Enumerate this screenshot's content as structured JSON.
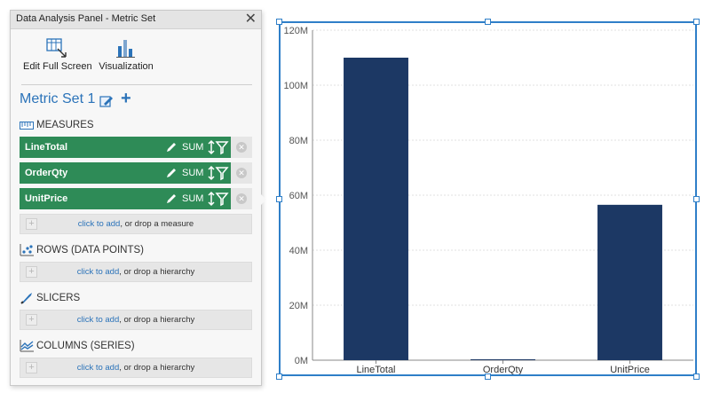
{
  "panel": {
    "title": "Data Analysis Panel - Metric Set",
    "close_glyph": "✕",
    "toolbar": {
      "edit_full_screen": "Edit Full Screen",
      "visualization": "Visualization"
    },
    "metric_set_name": "Metric Set 1",
    "add_glyph": "+",
    "sections": {
      "measures": "MEASURES",
      "rows": "ROWS (DATA POINTS)",
      "slicers": "SLICERS",
      "columns": "COLUMNS (SERIES)"
    },
    "measures": [
      {
        "name": "LineTotal",
        "aggregation": "SUM"
      },
      {
        "name": "OrderQty",
        "aggregation": "SUM"
      },
      {
        "name": "UnitPrice",
        "aggregation": "SUM"
      }
    ],
    "remove_glyph": "✕",
    "dropzones": {
      "link": "click to add",
      "measure_text": ", or drop a measure",
      "hierarchy_text": ", or drop a hierarchy"
    },
    "colors": {
      "accent": "#2b73b9",
      "measure_green": "#2e8b57"
    }
  },
  "chart_data": {
    "type": "bar",
    "categories": [
      "LineTotal",
      "OrderQty",
      "UnitPrice"
    ],
    "values": [
      110000000,
      300000,
      56500000
    ],
    "ylim": [
      0,
      120000000
    ],
    "yticks": [
      0,
      20000000,
      40000000,
      60000000,
      80000000,
      100000000,
      120000000
    ],
    "ytick_labels": [
      "0M",
      "20M",
      "40M",
      "60M",
      "80M",
      "100M",
      "120M"
    ],
    "bar_color": "#1c3864",
    "grid": true
  }
}
